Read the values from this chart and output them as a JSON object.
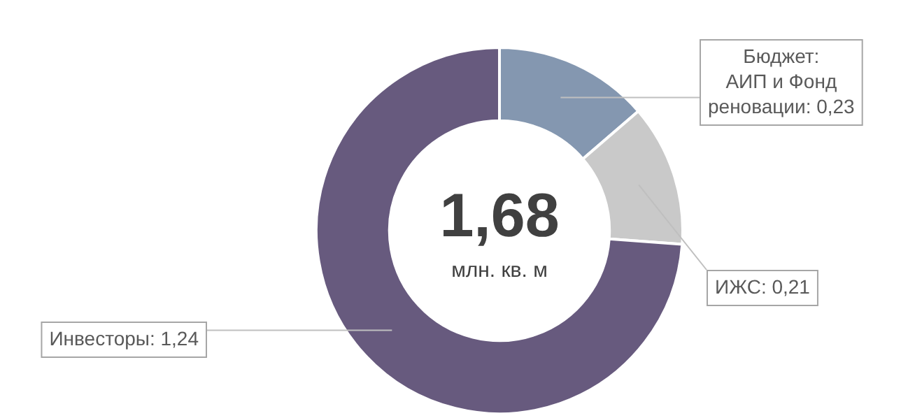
{
  "chart_data": {
    "type": "donut",
    "categories": [
      "Бюджет: АИП и Фонд реновации",
      "ИЖС",
      "Инвесторы"
    ],
    "values": [
      0.23,
      0.21,
      1.24
    ],
    "value_labels": [
      "0,23",
      "0,21",
      "1,24"
    ],
    "colors": [
      "#8497b0",
      "#c9c9c9",
      "#675a7e"
    ],
    "annotations": [
      "1,68",
      "млн. кв. м"
    ],
    "legend": false
  }
}
